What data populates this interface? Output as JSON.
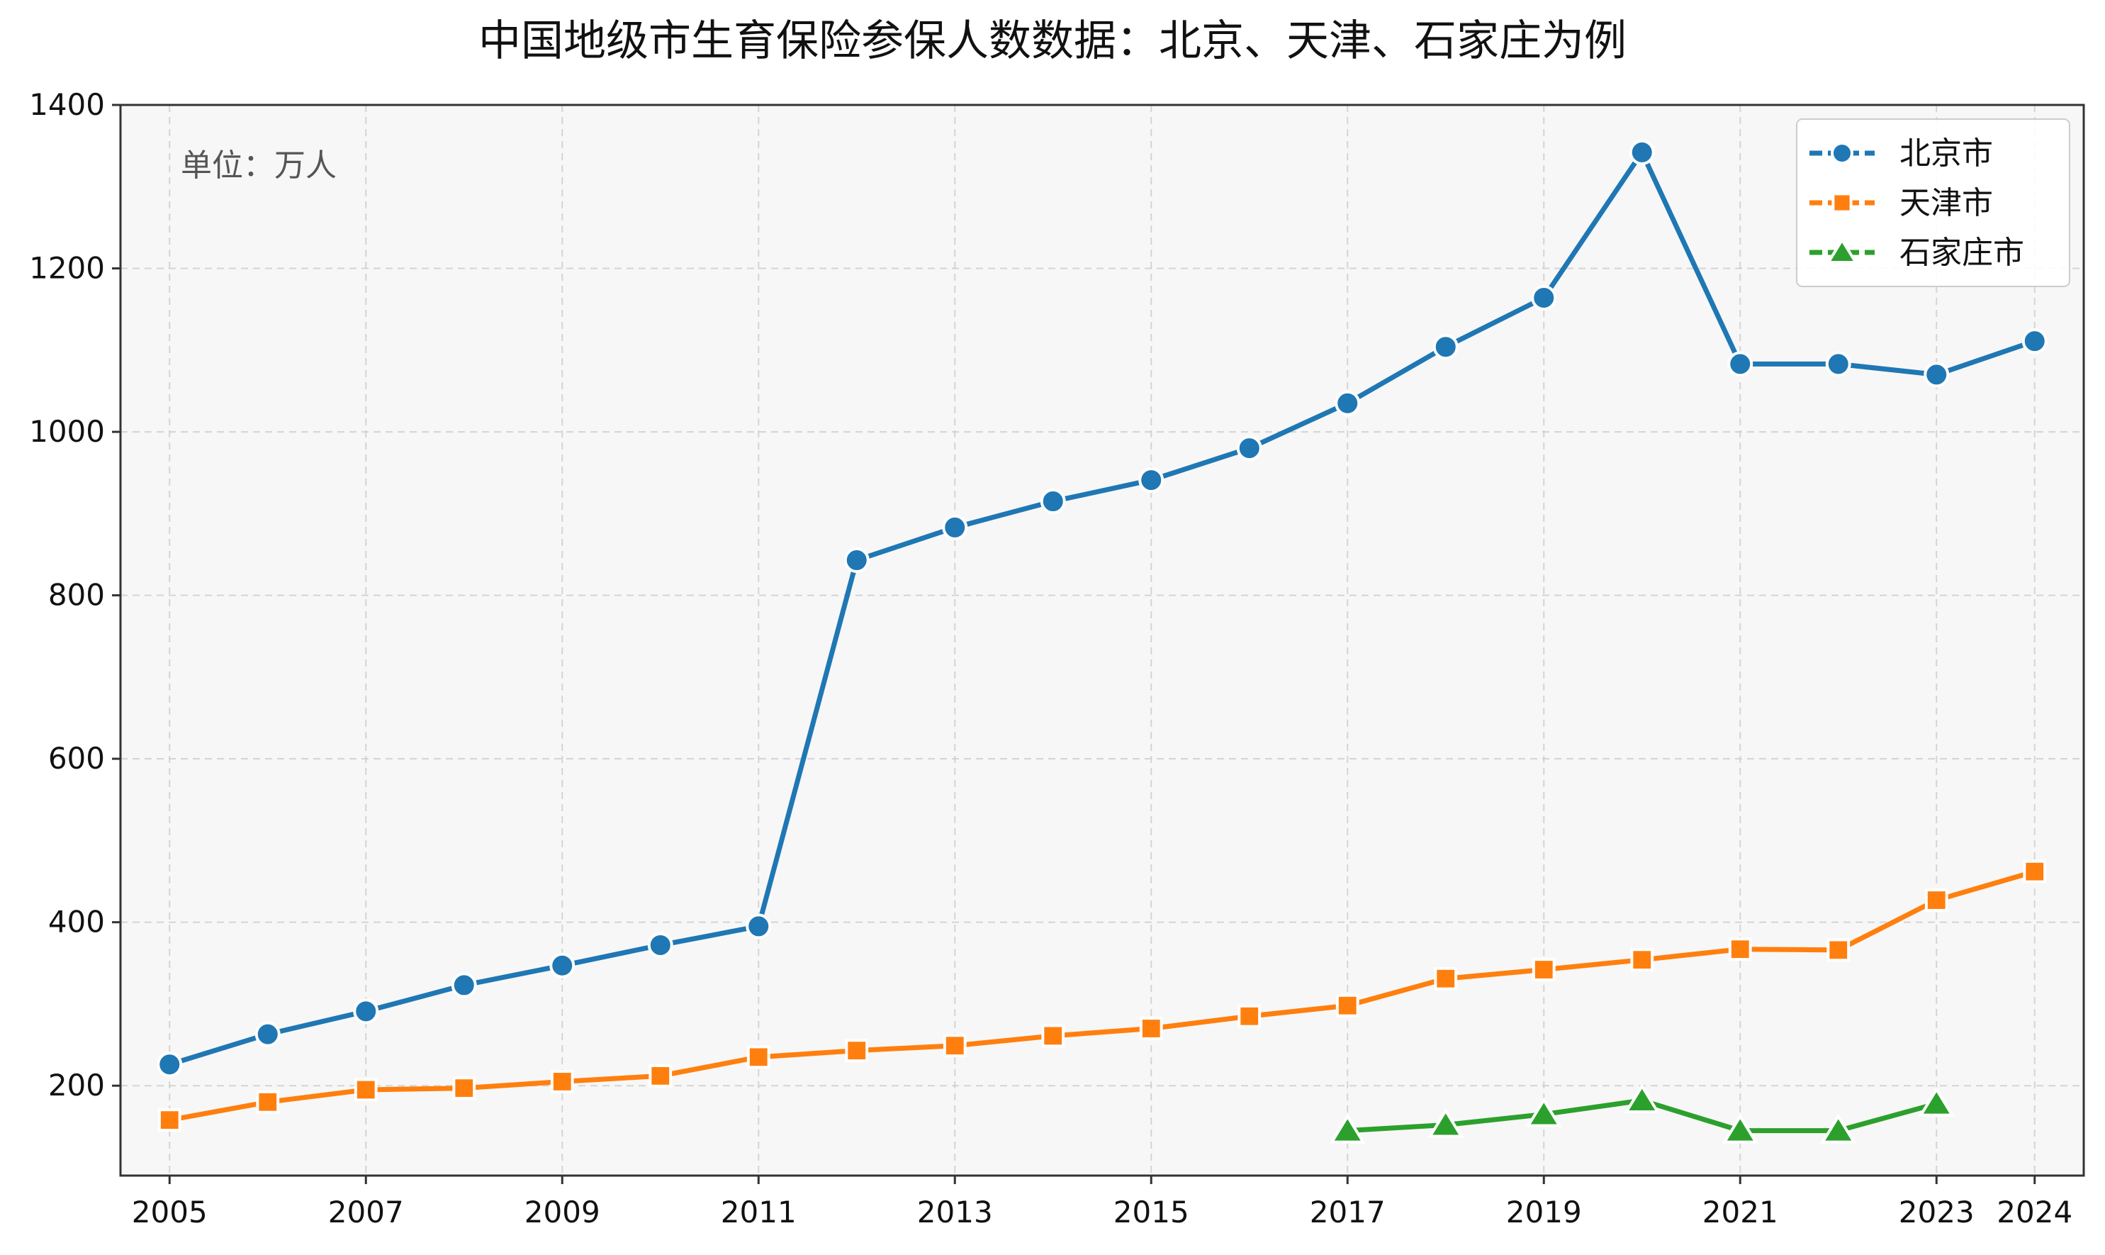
{
  "chart_data": {
    "type": "line",
    "title": "中国地级市生育保险参保人数数据：北京、天津、石家庄为例",
    "unit_note": "单位：万人",
    "xlabel": "",
    "ylabel": "",
    "x": [
      2005,
      2006,
      2007,
      2008,
      2009,
      2010,
      2011,
      2012,
      2013,
      2014,
      2015,
      2016,
      2017,
      2018,
      2019,
      2020,
      2021,
      2022,
      2023,
      2024
    ],
    "x_ticks": [
      "2005",
      "2007",
      "2009",
      "2011",
      "2013",
      "2015",
      "2017",
      "2019",
      "2021",
      "2023",
      "2024"
    ],
    "xlim": [
      2004.5,
      2024.5
    ],
    "ylim": [
      90,
      1400
    ],
    "y_ticks": [
      200,
      400,
      600,
      800,
      1000,
      1200,
      1400
    ],
    "grid": true,
    "legend_position": "top-right",
    "series": [
      {
        "name": "北京市",
        "color": "#1f77b4",
        "marker": "circle",
        "values": [
          226,
          263,
          291,
          323,
          347,
          372,
          395,
          843,
          883,
          915,
          941,
          980,
          1035,
          1104,
          1164,
          1342,
          1083,
          1083,
          1070,
          1111
        ]
      },
      {
        "name": "天津市",
        "color": "#ff7f0e",
        "marker": "square",
        "values": [
          158,
          180,
          195,
          197,
          205,
          212,
          235,
          243,
          249,
          261,
          270,
          285,
          298,
          331,
          342,
          354,
          367,
          366,
          427,
          462
        ]
      },
      {
        "name": "石家庄市",
        "color": "#2ca02c",
        "marker": "triangle",
        "values": [
          null,
          null,
          null,
          null,
          null,
          null,
          null,
          null,
          null,
          null,
          null,
          null,
          145,
          152,
          165,
          182,
          145,
          145,
          178,
          null
        ]
      }
    ]
  }
}
